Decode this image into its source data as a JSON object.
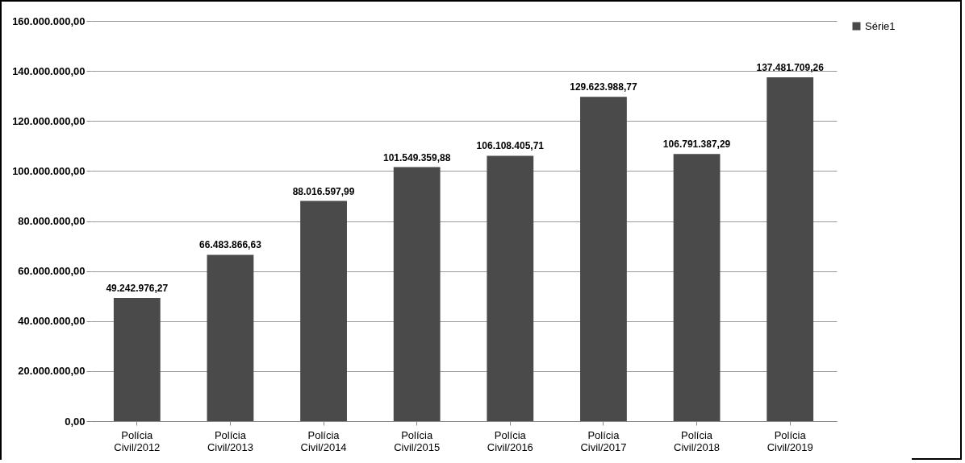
{
  "chart_data": {
    "type": "bar",
    "categories": [
      "Polícia Civil/2012",
      "Polícia Civil/2013",
      "Polícia Civil/2014",
      "Polícia Civil/2015",
      "Polícia Civil/2016",
      "Polícia Civil/2017",
      "Polícia Civil/2018",
      "Polícia Civil/2019"
    ],
    "series": [
      {
        "name": "Série1",
        "color": "#4a4a4a",
        "values": [
          49242976.27,
          66483866.63,
          88016597.99,
          101549359.88,
          106108405.71,
          129623988.77,
          106791387.29,
          137481709.26
        ],
        "value_labels": [
          "49.242.976,27",
          "66.483.866,63",
          "88.016.597,99",
          "101.549.359,88",
          "106.108.405,71",
          "129.623.988,77",
          "106.791.387,29",
          "137.481.709,26"
        ]
      }
    ],
    "ylim": [
      0,
      160000000
    ],
    "yticks": [
      {
        "value": 0,
        "label": "0,00"
      },
      {
        "value": 20000000,
        "label": "20.000.000,00"
      },
      {
        "value": 40000000,
        "label": "40.000.000,00"
      },
      {
        "value": 60000000,
        "label": "60.000.000,00"
      },
      {
        "value": 80000000,
        "label": "80.000.000,00"
      },
      {
        "value": 100000000,
        "label": "100.000.000,00"
      },
      {
        "value": 120000000,
        "label": "120.000.000,00"
      },
      {
        "value": 140000000,
        "label": "140.000.000,00"
      },
      {
        "value": 160000000,
        "label": "160.000.000,00"
      }
    ],
    "grid": "y",
    "legend": "right"
  }
}
